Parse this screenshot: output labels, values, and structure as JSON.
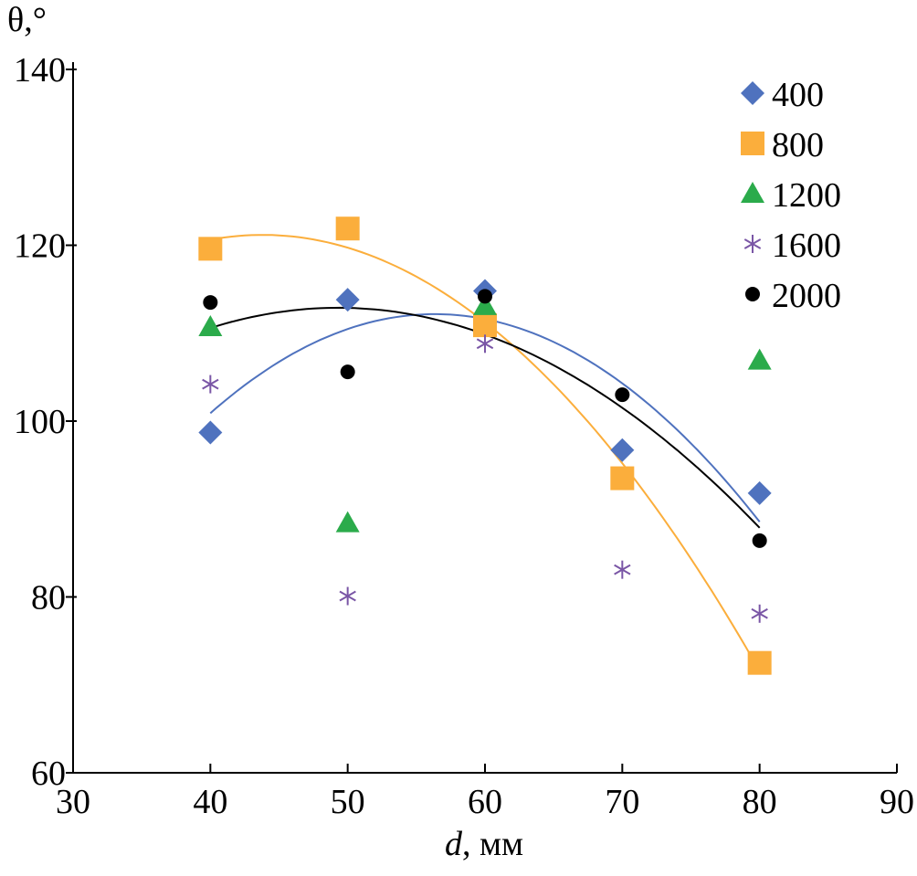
{
  "chart_data": {
    "type": "scatter",
    "title": "",
    "ylabel": "θ,°",
    "xlabel_var": "d",
    "xlabel_unit": ", мм",
    "xlim": [
      30,
      90
    ],
    "ylim": [
      60,
      140
    ],
    "xticks": [
      30,
      40,
      50,
      60,
      70,
      80,
      90
    ],
    "yticks": [
      60,
      80,
      100,
      120,
      140
    ],
    "grid": false,
    "legend_position": "top-right",
    "series": [
      {
        "name": "400",
        "marker": "diamond",
        "color": "#4f72be",
        "points": [
          [
            40,
            98.7
          ],
          [
            50,
            113.8
          ],
          [
            60,
            114.8
          ],
          [
            70,
            96.7
          ],
          [
            80,
            91.8
          ]
        ],
        "trend": "quadratic"
      },
      {
        "name": "800",
        "marker": "square",
        "color": "#fbae3c",
        "points": [
          [
            40,
            119.6
          ],
          [
            50,
            121.9
          ],
          [
            60,
            110.9
          ],
          [
            70,
            93.5
          ],
          [
            80,
            72.5
          ]
        ],
        "trend": "quadratic"
      },
      {
        "name": "1200",
        "marker": "triangle",
        "color": "#2bab4b",
        "points": [
          [
            40,
            110.7
          ],
          [
            50,
            88.4
          ],
          [
            60,
            113.1
          ],
          [
            80,
            106.9
          ]
        ]
      },
      {
        "name": "1600",
        "marker": "asterisk",
        "color": "#7a56a6",
        "points": [
          [
            40,
            104.2
          ],
          [
            50,
            80.1
          ],
          [
            60,
            108.8
          ],
          [
            70,
            83.1
          ],
          [
            80,
            78.1
          ]
        ]
      },
      {
        "name": "2000",
        "marker": "circle",
        "color": "#000000",
        "points": [
          [
            40,
            113.5
          ],
          [
            50,
            105.6
          ],
          [
            60,
            114.2
          ],
          [
            70,
            103.0
          ],
          [
            80,
            86.4
          ]
        ],
        "trend": "quadratic"
      }
    ]
  }
}
